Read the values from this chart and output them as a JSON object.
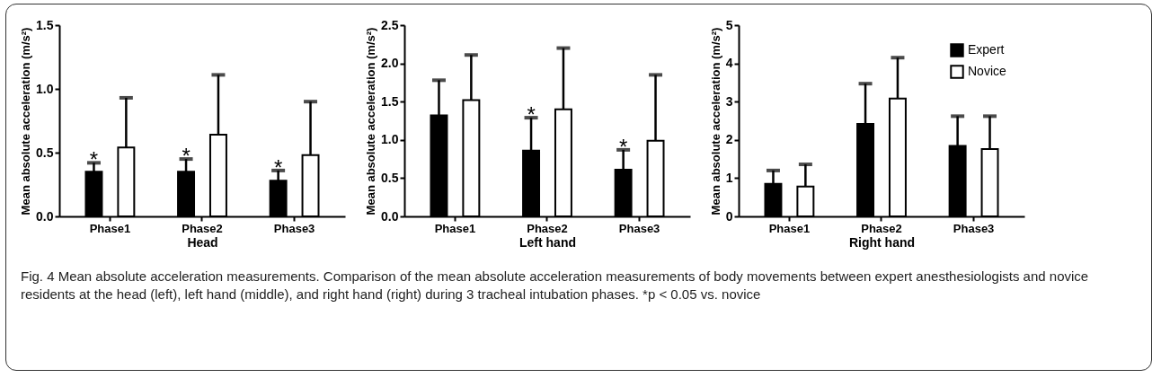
{
  "chart_data": [
    {
      "type": "bar",
      "xlabel": "Head",
      "ylabel": "Mean absolute acceleration (m/s²)",
      "categories": [
        "Phase1",
        "Phase2",
        "Phase3"
      ],
      "series": [
        {
          "color": "#000000",
          "values": [
            0.35,
            0.35,
            0.28
          ],
          "errors": [
            [
              0.35,
              0.42
            ],
            [
              0.35,
              0.45
            ],
            [
              0.28,
              0.36
            ]
          ],
          "value_labels": [
            "*",
            "*",
            "*"
          ]
        },
        {
          "color": "#ffffff",
          "values": [
            0.54,
            0.64,
            0.48
          ],
          "errors": [
            [
              0.54,
              0.93
            ],
            [
              0.64,
              1.11
            ],
            [
              0.48,
              0.9
            ]
          ]
        }
      ],
      "ylim": [
        0,
        1.5
      ],
      "yticks": [
        {
          "value": 0,
          "label": "0.0"
        },
        0.5,
        {
          "value": 1,
          "label": "1.0"
        },
        1.5
      ],
      "grid": false,
      "annotations": [
        "Fig. 4 Mean absolute acceleration measurements. Comparison of the mean absolute acceleration measurements of body movements between expert anesthesiologists and novice residents at the head (left), left hand (middle), and right hand (right) during 3 tracheal intubation phases. *p < 0.05 vs. novice"
      ]
    },
    {
      "type": "bar",
      "xlabel": "Left hand",
      "ylabel": "Mean absolute acceleration (m/s²)",
      "categories": [
        "Phase1",
        "Phase2",
        "Phase3"
      ],
      "series": [
        {
          "color": "#000000",
          "values": [
            1.32,
            0.86,
            0.61
          ],
          "errors": [
            [
              1.32,
              1.78
            ],
            [
              0.86,
              1.29
            ],
            [
              0.61,
              0.87
            ]
          ],
          "value_labels": [
            null,
            "*",
            "*"
          ]
        },
        {
          "color": "#ffffff",
          "values": [
            1.52,
            1.4,
            0.99
          ],
          "errors": [
            [
              1.52,
              2.11
            ],
            [
              1.4,
              2.2
            ],
            [
              0.99,
              1.85
            ]
          ]
        }
      ],
      "ylim": [
        0,
        2.5
      ],
      "yticks": [
        {
          "value": 0,
          "label": "0.0"
        },
        0.5,
        {
          "value": 1,
          "label": "1.0"
        },
        1.5,
        {
          "value": 2,
          "label": "2.0"
        },
        2.5
      ],
      "grid": false
    },
    {
      "type": "bar",
      "xlabel": "Right hand",
      "ylabel": "Mean absolute acceleration (m/s²)",
      "categories": [
        "Phase1",
        "Phase2",
        "Phase3"
      ],
      "series": [
        {
          "name": "Expert",
          "color": "#000000",
          "values": [
            0.85,
            2.42,
            1.84
          ],
          "errors": [
            [
              0.85,
              1.2
            ],
            [
              2.42,
              3.47
            ],
            [
              1.84,
              2.62
            ]
          ]
        },
        {
          "name": "Novice",
          "color": "#ffffff",
          "values": [
            0.78,
            3.08,
            1.76
          ],
          "errors": [
            [
              0.78,
              1.36
            ],
            [
              3.08,
              4.15
            ],
            [
              1.76,
              2.62
            ]
          ]
        }
      ],
      "ylim": [
        0,
        5
      ],
      "yticks": [
        0,
        1,
        2,
        3,
        4,
        5
      ],
      "grid": false,
      "legend": "top right"
    }
  ]
}
